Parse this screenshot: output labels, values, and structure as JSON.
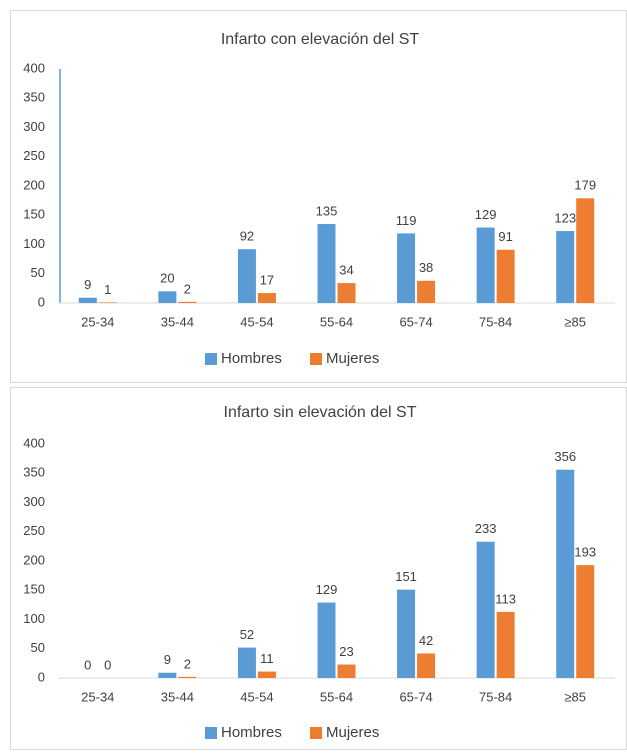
{
  "chart_data": [
    {
      "type": "bar",
      "title": "Infarto con elevación del ST",
      "categories": [
        "25-34",
        "35-44",
        "45-54",
        "55-64",
        "65-74",
        "75-84",
        "≥85"
      ],
      "series": [
        {
          "name": "Hombres",
          "color": "#5b9bd5",
          "values": [
            9,
            20,
            92,
            135,
            119,
            129,
            123
          ]
        },
        {
          "name": "Mujeres",
          "color": "#ed7d31",
          "values": [
            1,
            2,
            17,
            34,
            38,
            91,
            179
          ]
        }
      ],
      "ylim": [
        0,
        400
      ],
      "yticks": [
        0,
        50,
        100,
        150,
        200,
        250,
        300,
        350,
        400
      ],
      "legend": "bottom"
    },
    {
      "type": "bar",
      "title": "Infarto sin elevación del ST",
      "categories": [
        "25-34",
        "35-44",
        "45-54",
        "55-64",
        "65-74",
        "75-84",
        "≥85"
      ],
      "series": [
        {
          "name": "Hombres",
          "color": "#5b9bd5",
          "values": [
            0,
            9,
            52,
            129,
            151,
            233,
            356
          ]
        },
        {
          "name": "Mujeres",
          "color": "#ed7d31",
          "values": [
            0,
            2,
            11,
            23,
            42,
            113,
            193
          ]
        }
      ],
      "ylim": [
        0,
        400
      ],
      "yticks": [
        0,
        50,
        100,
        150,
        200,
        250,
        300,
        350,
        400
      ],
      "legend": "bottom"
    }
  ]
}
